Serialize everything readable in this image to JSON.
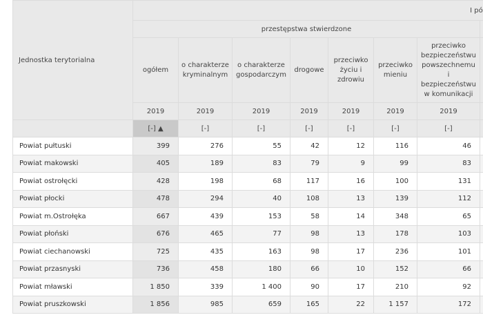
{
  "table": {
    "corner_label": "Jednostka terytorialna",
    "top_group": "I półroc",
    "sub_group": "przestępstwa stwierdzone",
    "columns": [
      {
        "label": "ogółem",
        "year": "2019",
        "sort": "[-] ▲"
      },
      {
        "label": "o charakterze kryminalnym",
        "year": "2019",
        "sort": "[-]"
      },
      {
        "label": "o charakterze gospodarczym",
        "year": "2019",
        "sort": "[-]"
      },
      {
        "label": "drogowe",
        "year": "2019",
        "sort": "[-]"
      },
      {
        "label": "przeciwko życiu i zdrowiu",
        "year": "2019",
        "sort": "[-]"
      },
      {
        "label": "przeciwko mieniu",
        "year": "2019",
        "sort": "[-]"
      },
      {
        "label": "przeciwko bezpieczeństwu powszechnemu i bezpieczeństwu w komunikacji",
        "year": "2019",
        "sort": "[-]"
      }
    ],
    "rows": [
      {
        "name": "Powiat pułtuski",
        "values": [
          "399",
          "276",
          "55",
          "42",
          "12",
          "116",
          "46"
        ]
      },
      {
        "name": "Powiat makowski",
        "values": [
          "405",
          "189",
          "83",
          "79",
          "9",
          "99",
          "83"
        ]
      },
      {
        "name": "Powiat ostrołęcki",
        "values": [
          "428",
          "198",
          "68",
          "117",
          "16",
          "100",
          "131"
        ]
      },
      {
        "name": "Powiat płocki",
        "values": [
          "478",
          "294",
          "40",
          "108",
          "13",
          "139",
          "112"
        ]
      },
      {
        "name": "Powiat m.Ostrołęka",
        "values": [
          "667",
          "439",
          "153",
          "58",
          "14",
          "348",
          "65"
        ]
      },
      {
        "name": "Powiat płoński",
        "values": [
          "676",
          "465",
          "77",
          "98",
          "13",
          "178",
          "103"
        ]
      },
      {
        "name": "Powiat ciechanowski",
        "values": [
          "725",
          "435",
          "163",
          "98",
          "17",
          "236",
          "101"
        ]
      },
      {
        "name": "Powiat przasnyski",
        "values": [
          "736",
          "458",
          "180",
          "66",
          "10",
          "152",
          "66"
        ]
      },
      {
        "name": "Powiat mławski",
        "values": [
          "1 850",
          "339",
          "1 400",
          "90",
          "17",
          "210",
          "92"
        ]
      },
      {
        "name": "Powiat pruszkowski",
        "values": [
          "1 856",
          "985",
          "659",
          "165",
          "22",
          "1 157",
          "172"
        ]
      }
    ]
  }
}
